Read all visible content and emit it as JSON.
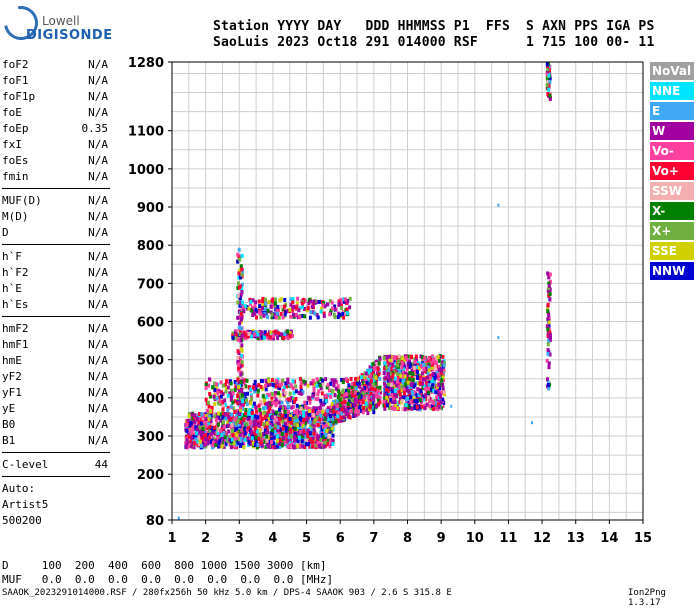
{
  "logo": {
    "line1": "Lowell",
    "line2": "DIGISONDE"
  },
  "header": {
    "line1": "Station YYYY DAY   DDD HHMMSS P1  FFS  S AXN PPS IGA PS",
    "line2": "SaoLuis 2023 Oct18 291 014000 RSF      1 715 100 00- 11"
  },
  "params": {
    "group1": [
      {
        "label": "foF2",
        "value": "N/A"
      },
      {
        "label": "foF1",
        "value": "N/A"
      },
      {
        "label": "foF1p",
        "value": "N/A"
      },
      {
        "label": "foE",
        "value": "N/A"
      },
      {
        "label": "foEp",
        "value": "0.35"
      },
      {
        "label": "fxI",
        "value": "N/A"
      },
      {
        "label": "foEs",
        "value": "N/A"
      },
      {
        "label": "fmin",
        "value": "N/A"
      }
    ],
    "group2": [
      {
        "label": "MUF(D)",
        "value": "N/A"
      },
      {
        "label": "M(D)",
        "value": "N/A"
      },
      {
        "label": "D",
        "value": "N/A"
      }
    ],
    "group3": [
      {
        "label": "h`F",
        "value": "N/A"
      },
      {
        "label": "h`F2",
        "value": "N/A"
      },
      {
        "label": "h`E",
        "value": "N/A"
      },
      {
        "label": "h`Es",
        "value": "N/A"
      }
    ],
    "group4": [
      {
        "label": "hmF2",
        "value": "N/A"
      },
      {
        "label": "hmF1",
        "value": "N/A"
      },
      {
        "label": "hmE",
        "value": "N/A"
      },
      {
        "label": "yF2",
        "value": "N/A"
      },
      {
        "label": "yF1",
        "value": "N/A"
      },
      {
        "label": "yE",
        "value": "N/A"
      },
      {
        "label": "B0",
        "value": "N/A"
      },
      {
        "label": "B1",
        "value": "N/A"
      }
    ],
    "clevel": {
      "label": "C-level",
      "value": "44"
    },
    "auto": [
      "Auto:",
      "Artist5",
      "500200"
    ]
  },
  "legend": [
    {
      "label": "NoVal",
      "color": "#a0a0a0"
    },
    {
      "label": "NNE",
      "color": "#00e5ff"
    },
    {
      "label": "E",
      "color": "#3fa9f5"
    },
    {
      "label": "W",
      "color": "#a000a0"
    },
    {
      "label": "Vo-",
      "color": "#ff40a0"
    },
    {
      "label": "Vo+",
      "color": "#ff0033"
    },
    {
      "label": "SSW",
      "color": "#f4b0b0"
    },
    {
      "label": "X-",
      "color": "#008000"
    },
    {
      "label": "X+",
      "color": "#70b040"
    },
    {
      "label": "SSE",
      "color": "#d0d000"
    },
    {
      "label": "NNW",
      "color": "#0000d0"
    }
  ],
  "bottom": {
    "d_line": "D     100  200  400  600  800 1000 1500 3000 [km]",
    "muf_line": "MUF   0.0  0.0  0.0  0.0  0.0  0.0  0.0  0.0 [MHz]",
    "footer": "SAAOK_2023291014000.RSF / 280fx256h 50 kHz 5.0 km / DPS-4 SAAOK 903 / 2.6 S 315.8 E",
    "version": "Ion2Png 1.3.17"
  },
  "chart_data": {
    "type": "scatter",
    "xlim": [
      1,
      15
    ],
    "ylim": [
      80,
      1280
    ],
    "x_ticks": [
      1,
      2,
      3,
      4,
      5,
      6,
      7,
      8,
      9,
      10,
      11,
      12,
      13,
      14,
      15
    ],
    "y_ticks": [
      80,
      200,
      300,
      400,
      500,
      600,
      700,
      800,
      900,
      1000,
      1100,
      1280
    ],
    "grid": true,
    "legend_position": "right",
    "clusters": [
      {
        "name": "F-layer low trace",
        "x_range": [
          1.4,
          5.8
        ],
        "y_range": [
          270,
          360
        ],
        "density": 1400
      },
      {
        "name": "F-layer rising trace",
        "x_range": [
          5.5,
          7.2
        ],
        "y_range": [
          320,
          470
        ],
        "density": 600
      },
      {
        "name": "F-layer upper",
        "x_range": [
          2.0,
          7.0
        ],
        "y_range": [
          360,
          450
        ],
        "density": 500
      },
      {
        "name": "Spread F patch",
        "x_range": [
          7.3,
          9.1
        ],
        "y_range": [
          370,
          510
        ],
        "density": 700
      },
      {
        "name": "Second-hop trace",
        "x_range": [
          3.0,
          6.3
        ],
        "y_range": [
          610,
          660
        ],
        "density": 220
      },
      {
        "name": "Second-hop lower",
        "x_range": [
          2.8,
          4.6
        ],
        "y_range": [
          555,
          575
        ],
        "density": 120
      },
      {
        "name": "Vertical streak at 3.0 MHz",
        "x_range": [
          2.95,
          3.1
        ],
        "y_range": [
          330,
          790
        ],
        "density": 120
      },
      {
        "name": "Interference line 12.2 MHz high",
        "x_range": [
          12.15,
          12.25
        ],
        "y_range": [
          1180,
          1280
        ],
        "density": 40
      },
      {
        "name": "Interference line 12.2 MHz mid",
        "x_range": [
          12.15,
          12.25
        ],
        "y_range": [
          420,
          730
        ],
        "density": 60
      }
    ],
    "isolated_points": [
      {
        "x": 10.7,
        "y": 905
      },
      {
        "x": 10.7,
        "y": 558
      },
      {
        "x": 11.7,
        "y": 335
      },
      {
        "x": 1.2,
        "y": 85
      },
      {
        "x": 9.3,
        "y": 378
      }
    ]
  }
}
